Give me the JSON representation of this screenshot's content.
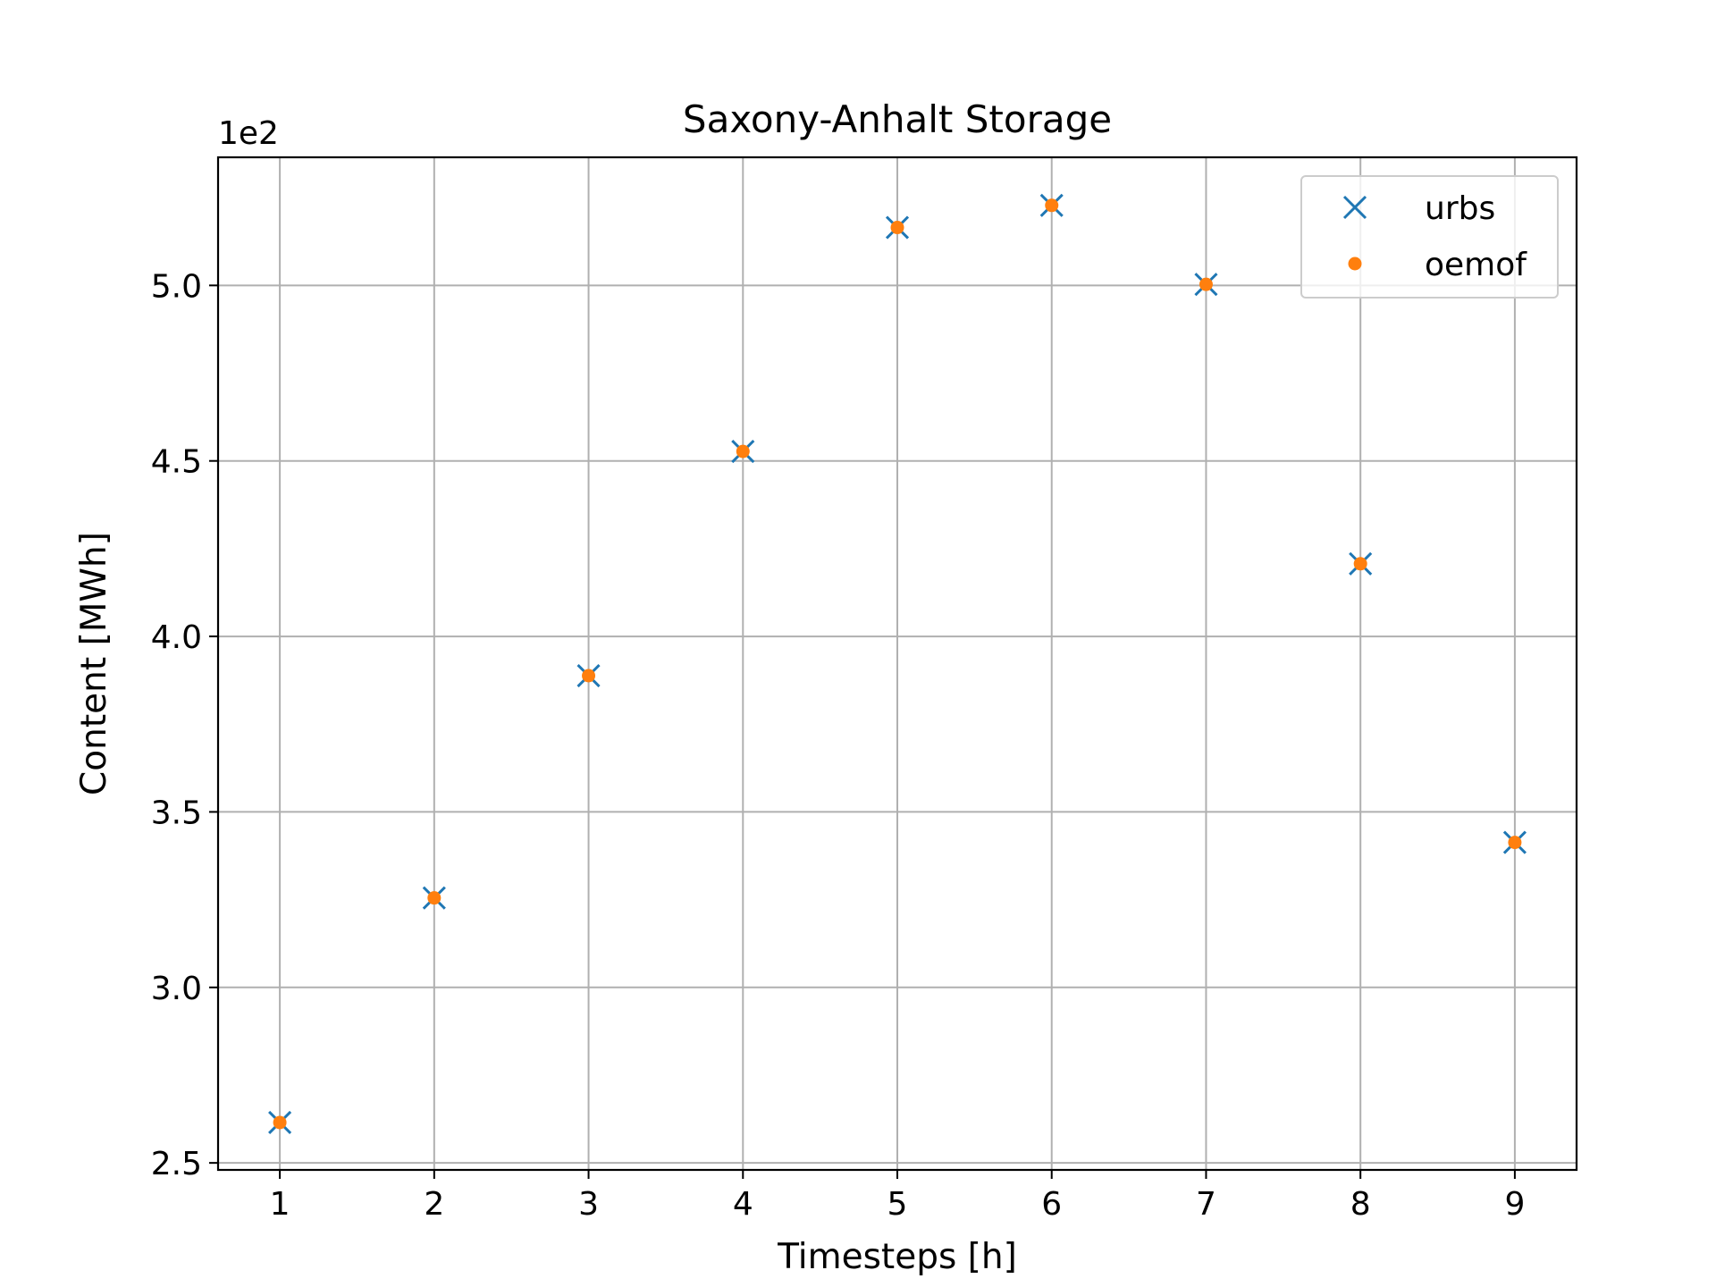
{
  "chart_data": {
    "type": "scatter",
    "title": "Saxony-Anhalt Storage",
    "xlabel": "Timesteps [h]",
    "ylabel": "Content [MWh]",
    "y_offset_label": "1e2",
    "x": [
      1,
      2,
      3,
      4,
      5,
      6,
      7,
      8,
      9
    ],
    "xlim": [
      0.6,
      9.4
    ],
    "ylim": [
      2.48,
      5.365
    ],
    "x_ticks": [
      1,
      2,
      3,
      4,
      5,
      6,
      7,
      8,
      9
    ],
    "y_ticks": [
      2.5,
      3.0,
      3.5,
      4.0,
      4.5,
      5.0
    ],
    "y_tick_labels": [
      "2.5",
      "3.0",
      "3.5",
      "4.0",
      "4.5",
      "5.0"
    ],
    "grid": true,
    "legend_position": "top-right",
    "series": [
      {
        "name": "urbs",
        "marker": "x",
        "color": "#1f77b4",
        "values": [
          2.615,
          3.255,
          3.888,
          4.527,
          5.165,
          5.228,
          5.003,
          4.207,
          3.413
        ]
      },
      {
        "name": "oemof",
        "marker": "dot",
        "color": "#ff7f0e",
        "values": [
          2.615,
          3.255,
          3.888,
          4.527,
          5.165,
          5.228,
          5.003,
          4.207,
          3.413
        ]
      }
    ]
  }
}
